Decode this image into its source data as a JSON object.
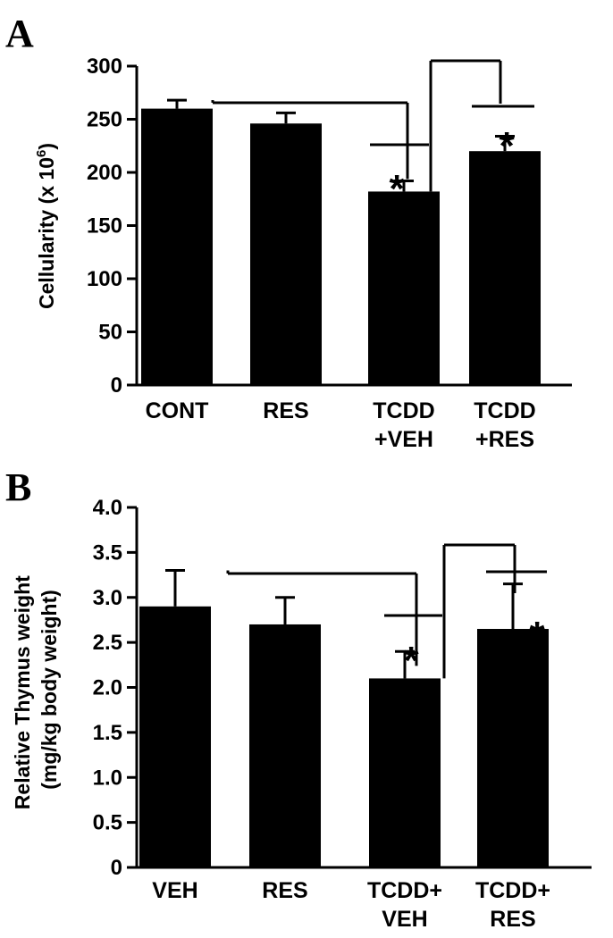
{
  "chart_data": [
    {
      "type": "bar",
      "panel": "A",
      "categories": [
        "CONT",
        "RES",
        "TCDD\n+VEH",
        "TCDD\n+RES"
      ],
      "values": [
        260,
        246,
        182,
        220
      ],
      "errors": [
        8,
        10,
        10,
        14
      ],
      "ylabel_main": "Cellularity (x 10",
      "ylabel_sup": "6",
      "ylabel_end": ")",
      "ylim": [
        0,
        300
      ],
      "yticks": [
        "0",
        "50",
        "100",
        "150",
        "200",
        "250",
        "300"
      ],
      "significance": "*",
      "significant_indices": [
        2,
        3
      ],
      "comparisons": [
        [
          0,
          2
        ],
        [
          2,
          3
        ]
      ],
      "bar_color": "#000000"
    },
    {
      "type": "bar",
      "panel": "B",
      "categories": [
        "VEH",
        "RES",
        "TCDD+\nVEH",
        "TCDD+\nRES"
      ],
      "values": [
        2.9,
        2.7,
        2.1,
        2.65
      ],
      "errors": [
        0.4,
        0.3,
        0.3,
        0.5
      ],
      "ylabel_line1": "Relative Thymus weight",
      "ylabel_line2": "(mg/kg body weight)",
      "ylim": [
        0,
        4.0
      ],
      "yticks": [
        "0",
        "0.5",
        "1.0",
        "1.5",
        "2.0",
        "2.5",
        "3.0",
        "3.5",
        "4.0"
      ],
      "significance": "*",
      "significant_indices": [
        2,
        3
      ],
      "comparisons": [
        [
          0,
          2
        ],
        [
          2,
          3
        ]
      ],
      "bar_color": "#000000"
    }
  ]
}
